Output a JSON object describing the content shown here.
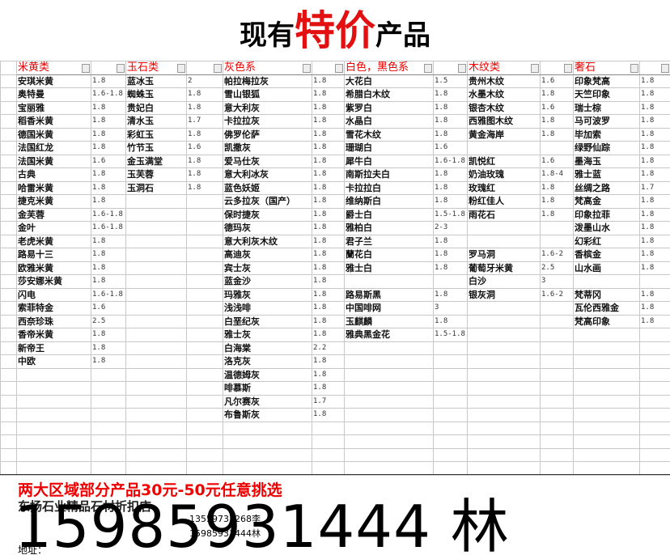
{
  "title": {
    "prefix": "现有",
    "highlight": "特价",
    "suffix": "产品"
  },
  "groups": [
    {
      "name": "米黄类",
      "items": [
        [
          "安琪米黄",
          "1.8"
        ],
        [
          "奥特曼",
          "1.6-1.8"
        ],
        [
          "宝丽雅",
          "1.8"
        ],
        [
          "稻香米黄",
          "1.8"
        ],
        [
          "德国米黄",
          "1.8"
        ],
        [
          "法国红龙",
          "1.8"
        ],
        [
          "法国米黄",
          "1.6"
        ],
        [
          "古典",
          "1.8"
        ],
        [
          "哈雷米黄",
          "1.8"
        ],
        [
          "捷克米黄",
          "1.8"
        ],
        [
          "金芙蓉",
          "1.6-1.8"
        ],
        [
          "金叶",
          "1.6-1.8"
        ],
        [
          "老虎米黄",
          "1.8"
        ],
        [
          "路易十三",
          "1.8"
        ],
        [
          "欧雅米黄",
          "1.8"
        ],
        [
          "莎安娜米黄",
          "1.8"
        ],
        [
          "闪电",
          "1.6-1.8"
        ],
        [
          "索菲特金",
          "1.6"
        ],
        [
          "西奈珍珠",
          "2.5"
        ],
        [
          "香帝米黄",
          "1.8"
        ],
        [
          "新帝王",
          "1.8"
        ],
        [
          "中欧",
          "1.8"
        ]
      ]
    },
    {
      "name": "玉石类",
      "items": [
        [
          "蓝冰玉",
          "2"
        ],
        [
          "蜘蛛玉",
          "1.8"
        ],
        [
          "贵妃白",
          "1.8"
        ],
        [
          "清水玉",
          "1.7"
        ],
        [
          "彩虹玉",
          "1.8"
        ],
        [
          "竹节玉",
          "1.6"
        ],
        [
          "金玉满堂",
          "1.8"
        ],
        [
          "玉芙蓉",
          "1.8"
        ],
        [
          "玉洞石",
          "1.8"
        ]
      ]
    },
    {
      "name": "灰色系",
      "items": [
        [
          "帕拉梅拉灰",
          "1.8"
        ],
        [
          "雪山银狐",
          "1.8"
        ],
        [
          "意大利灰",
          "1.8"
        ],
        [
          "卡拉拉灰",
          "1.8"
        ],
        [
          "佛罗伦萨",
          "1.8"
        ],
        [
          "凯撒灰",
          "1.8"
        ],
        [
          "爱马仕灰",
          "1.8"
        ],
        [
          "意大利冰灰",
          "1.8"
        ],
        [
          "蓝色妖姬",
          "1.8"
        ],
        [
          "云多拉灰（国产）",
          "1.8"
        ],
        [
          "保时捷灰",
          "1.8"
        ],
        [
          "德玛灰",
          "1.8"
        ],
        [
          "意大利灰木纹",
          "1.8"
        ],
        [
          "高迪灰",
          "1.8"
        ],
        [
          "宾士灰",
          "1.8"
        ],
        [
          "蓝金沙",
          "1.8"
        ],
        [
          "玛雅灰",
          "1.8"
        ],
        [
          "浅浅啡",
          "1.8"
        ],
        [
          "白垩纪灰",
          "1.8"
        ],
        [
          "雅士灰",
          "1.8"
        ],
        [
          "白海棠",
          "2.2"
        ],
        [
          "洛克灰",
          "1.8"
        ],
        [
          "温德姆灰",
          "1.8"
        ],
        [
          "啡慕斯",
          "1.8"
        ],
        [
          "凡尔赛灰",
          "1.7"
        ],
        [
          "布鲁斯灰",
          "1.8"
        ]
      ]
    },
    {
      "name": "白色，黑色系",
      "items": [
        [
          "大花白",
          "1.5"
        ],
        [
          "希腊白木纹",
          "1.8"
        ],
        [
          "紫罗白",
          "1.8"
        ],
        [
          "水晶白",
          "1.8"
        ],
        [
          "雪花木纹",
          "1.8"
        ],
        [
          "珊瑚白",
          "1.6"
        ],
        [
          "犀牛白",
          "1.6-1.8"
        ],
        [
          "南斯拉夫白",
          "1.8"
        ],
        [
          "卡拉拉白",
          "1.8"
        ],
        [
          "维纳斯白",
          "1.8"
        ],
        [
          "爵士白",
          "1.5-1.8"
        ],
        [
          "雅柏白",
          "2-3"
        ],
        [
          "君子兰",
          "1.8"
        ],
        [
          "蘭花白",
          "1.8"
        ],
        [
          "雅士白",
          "1.8"
        ],
        null,
        [
          "路易斯黑",
          "1.8"
        ],
        [
          "中国啡网",
          "3"
        ],
        [
          "玉麒麟",
          "1.8"
        ],
        [
          "雅典黑金花",
          "1.5-1.8"
        ]
      ]
    },
    {
      "name": "木纹类",
      "items": [
        [
          "贵州木纹",
          "1.6"
        ],
        [
          "水墨木纹",
          "1.8"
        ],
        [
          "银杏木纹",
          "1.6"
        ],
        [
          "西雅图木纹",
          "1.8"
        ],
        [
          "黄金海岸",
          "1.8"
        ],
        null,
        [
          "凯悦红",
          "1.6"
        ],
        [
          "奶油玫瑰",
          "1.8-4"
        ],
        [
          "玫瑰红",
          "1.8"
        ],
        [
          "粉红佳人",
          "1.8"
        ],
        [
          "雨花石",
          "1.8"
        ],
        null,
        null,
        [
          "罗马洞",
          "1.6-2"
        ],
        [
          "葡萄牙米黄",
          "2.5"
        ],
        [
          "白沙",
          "3"
        ],
        [
          "银灰洞",
          "1.6-2"
        ]
      ]
    },
    {
      "name": "奢石",
      "items": [
        [
          "印象梵高",
          "1.8"
        ],
        [
          "天竺印象",
          "1.8"
        ],
        [
          "瑞士棕",
          "1.8"
        ],
        [
          "马可波罗",
          "1.8"
        ],
        [
          "毕加索",
          "1.8"
        ],
        [
          "绿野仙踪",
          "1.8"
        ],
        [
          "墨海玉",
          "1.8"
        ],
        [
          "雅士蓝",
          "1.8"
        ],
        [
          "丝绸之路",
          "1.7"
        ],
        [
          "梵高金",
          "1.8"
        ],
        [
          "印象拉菲",
          "1.8"
        ],
        [
          "泼墨山水",
          "1.8"
        ],
        [
          "幻彩红",
          "1.8"
        ],
        [
          "香槟金",
          "1.8"
        ],
        [
          "山水画",
          "1.8"
        ],
        null,
        [
          "梵蒂冈",
          "1.8"
        ],
        [
          "瓦伦西雅金",
          "1.8"
        ],
        [
          "梵高印象",
          "1.8"
        ]
      ]
    }
  ],
  "footer": {
    "promo": "两大区域部分产品30元-50元任意挑选",
    "shop": "东扬石业精品石材折扣店",
    "phone1": "13559731268李",
    "phone2": "15985931444林",
    "big": "15985931444 林",
    "address": "地址："
  }
}
